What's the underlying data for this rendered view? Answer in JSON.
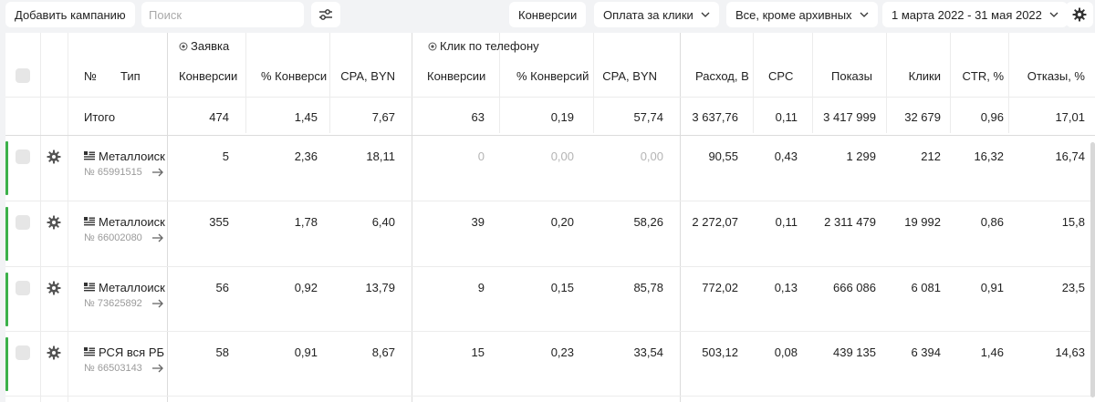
{
  "toolbar": {
    "add_campaign": "Добавить кампанию",
    "search_placeholder": "Поиск",
    "conversions": "Конверсии",
    "payment": "Оплата за клики",
    "archive": "Все, кроме архивных",
    "date_range": "1 марта 2022 - 31 мая 2022"
  },
  "groups": {
    "zayavka": "Заявка",
    "phone_click": "Клик по телефону"
  },
  "columns": {
    "number": "№",
    "type": "Тип",
    "conv1": "Конверсии",
    "pconv1": "% Конверси",
    "cpa1": "CPA, BYN",
    "conv2": "Конверсии",
    "pconv2": "% Конверсий",
    "cpa2": "CPA, BYN",
    "spend": "Расход, В",
    "cpc": "CPC",
    "shows": "Показы",
    "clicks": "Клики",
    "ctr": "CTR, %",
    "bounce": "Отказы, %"
  },
  "total": {
    "label": "Итого",
    "conv1": "474",
    "pconv1": "1,45",
    "cpa1": "7,67",
    "conv2": "63",
    "pconv2": "0,19",
    "cpa2": "57,74",
    "spend": "3 637,76",
    "cpc": "0,11",
    "shows": "3 417 999",
    "clicks": "32 679",
    "ctr": "0,96",
    "bounce": "17,01"
  },
  "rows": [
    {
      "name": "Металлоиск",
      "id": "№ 65991515",
      "conv1": "5",
      "pconv1": "2,36",
      "cpa1": "18,11",
      "conv2": "0",
      "pconv2": "0,00",
      "cpa2": "0,00",
      "spend": "90,55",
      "cpc": "0,43",
      "shows": "1 299",
      "clicks": "212",
      "ctr": "16,32",
      "bounce": "16,74"
    },
    {
      "name": "Металлоиск",
      "id": "№ 66002080",
      "conv1": "355",
      "pconv1": "1,78",
      "cpa1": "6,40",
      "conv2": "39",
      "pconv2": "0,20",
      "cpa2": "58,26",
      "spend": "2 272,07",
      "cpc": "0,11",
      "shows": "2 311 479",
      "clicks": "19 992",
      "ctr": "0,86",
      "bounce": "15,8"
    },
    {
      "name": "Металлоиск",
      "id": "№ 73625892",
      "conv1": "56",
      "pconv1": "0,92",
      "cpa1": "13,79",
      "conv2": "9",
      "pconv2": "0,15",
      "cpa2": "85,78",
      "spend": "772,02",
      "cpc": "0,13",
      "shows": "666 086",
      "clicks": "6 081",
      "ctr": "0,91",
      "bounce": "23,5"
    },
    {
      "name": "РСЯ вся РБ",
      "id": "№ 66503143",
      "conv1": "58",
      "pconv1": "0,91",
      "cpa1": "8,67",
      "conv2": "15",
      "pconv2": "0,23",
      "cpa2": "33,54",
      "spend": "503,12",
      "cpc": "0,08",
      "shows": "439 135",
      "clicks": "6 394",
      "ctr": "1,46",
      "bounce": "14,63"
    }
  ],
  "colors": {
    "accent_green": "#3cb14a",
    "muted": "#b4b4b4"
  },
  "icons": [
    "settings-sliders-icon",
    "chevron-down-icon",
    "gear-icon",
    "target-icon",
    "campaign-text-icon",
    "arrow-right-icon"
  ]
}
